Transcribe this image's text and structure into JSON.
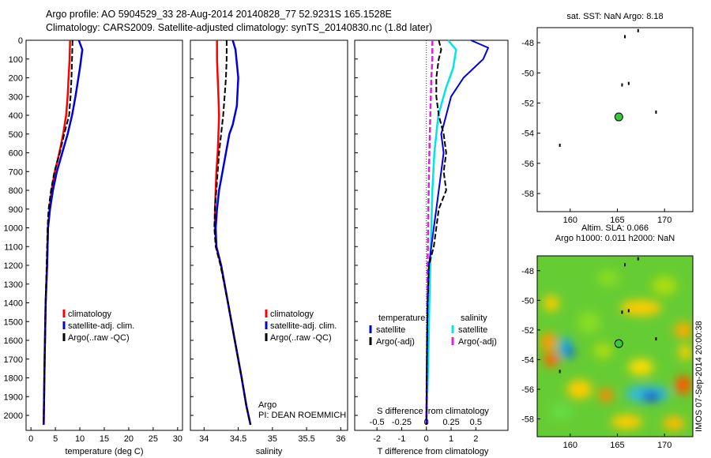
{
  "header": {
    "line1": "Argo profile: AO 5904529_33 28-Aug-2014 20140828_77 52.9231S 165.1528E",
    "line2": "Climatology: CARS2009. Satellite-adjusted climatology: synTS_20140830.nc (1.8d later)"
  },
  "side_label": "IMOS 07-Sep-2014 20:00:38",
  "colors": {
    "climatology": "#ff0000",
    "satellite": "#0000dd",
    "argo": "#000000",
    "s_satellite": "#00e5e5",
    "s_argo": "#e020e0",
    "marker": "#33cc33"
  },
  "chart_data": [
    {
      "type": "line",
      "panel": "temperature",
      "xlabel": "temperature (deg C)",
      "xlim": [
        -1,
        31
      ],
      "xticks": [
        "0",
        "5",
        "10",
        "15",
        "20",
        "25",
        "30"
      ],
      "ylim": [
        0,
        2080
      ],
      "y_reversed": true,
      "yticks": [
        "0",
        "100",
        "200",
        "300",
        "400",
        "500",
        "600",
        "700",
        "800",
        "900",
        "1000",
        "1100",
        "1200",
        "1300",
        "1400",
        "1500",
        "1600",
        "1700",
        "1800",
        "1900",
        "2000"
      ],
      "legend": [
        "climatology",
        "satellite-adj. clim.",
        "Argo(..raw -QC)"
      ],
      "series": [
        {
          "name": "climatology",
          "style": "solid",
          "x": [
            8.0,
            7.9,
            7.7,
            7.5,
            7.2,
            6.6,
            5.8,
            4.9,
            4.2,
            3.8,
            3.5,
            3.3,
            3.0,
            2.8,
            2.6
          ],
          "y": [
            0,
            100,
            200,
            300,
            400,
            500,
            600,
            700,
            800,
            900,
            1000,
            1200,
            1400,
            1700,
            2050
          ]
        },
        {
          "name": "satellite-adj. clim.",
          "style": "solid",
          "x": [
            9.8,
            10.5,
            10.0,
            9.1,
            8.4,
            7.5,
            6.4,
            5.3,
            4.5,
            3.9,
            3.5,
            3.3,
            3.0,
            2.8,
            2.6
          ],
          "y": [
            0,
            50,
            150,
            300,
            400,
            500,
            600,
            700,
            800,
            900,
            1000,
            1200,
            1400,
            1700,
            2050
          ]
        },
        {
          "name": "Argo(..raw -QC)",
          "style": "dashed",
          "x": [
            8.5,
            8.4,
            8.3,
            8.1,
            7.8,
            6.8,
            5.9,
            4.8,
            4.1,
            3.6,
            3.4,
            3.2,
            3.0,
            2.8,
            2.6
          ],
          "y": [
            0,
            100,
            200,
            300,
            400,
            500,
            600,
            700,
            800,
            900,
            1000,
            1200,
            1400,
            1700,
            2050
          ]
        }
      ]
    },
    {
      "type": "line",
      "panel": "salinity",
      "xlabel": "salinity",
      "xlim": [
        33.8,
        36.1
      ],
      "xticks": [
        "34",
        "34.5",
        "35",
        "35.5",
        "36"
      ],
      "ylim": [
        0,
        2080
      ],
      "y_reversed": true,
      "legend": [
        "climatology",
        "satellite-adj. clim.",
        "Argo(..raw -QC)"
      ],
      "annotation": [
        "Argo",
        "PI: DEAN ROEMMICH"
      ],
      "series": [
        {
          "name": "climatology",
          "style": "solid",
          "x": [
            34.19,
            34.19,
            34.2,
            34.21,
            34.22,
            34.21,
            34.2,
            34.18,
            34.17,
            34.16,
            34.16,
            34.18,
            34.25,
            34.35,
            34.45,
            34.55,
            34.62,
            34.68
          ],
          "y": [
            0,
            100,
            200,
            300,
            400,
            500,
            600,
            700,
            800,
            900,
            1000,
            1100,
            1200,
            1400,
            1600,
            1800,
            1950,
            2050
          ]
        },
        {
          "name": "satellite-adj. clim.",
          "style": "solid",
          "x": [
            34.42,
            34.46,
            34.5,
            34.48,
            34.42,
            34.37,
            34.32,
            34.27,
            34.22,
            34.19,
            34.17,
            34.18,
            34.25,
            34.35,
            34.45,
            34.55,
            34.62,
            34.68
          ],
          "y": [
            0,
            50,
            200,
            350,
            450,
            500,
            600,
            700,
            800,
            900,
            1000,
            1100,
            1200,
            1400,
            1600,
            1800,
            1950,
            2050
          ]
        },
        {
          "name": "Argo(..raw -QC)",
          "style": "dashed",
          "x": [
            34.33,
            34.33,
            34.32,
            34.3,
            34.28,
            34.25,
            34.22,
            34.2,
            34.18,
            34.16,
            34.15,
            34.17,
            34.24,
            34.35,
            34.45,
            34.55,
            34.62,
            34.68
          ],
          "y": [
            0,
            100,
            200,
            300,
            400,
            500,
            600,
            700,
            800,
            900,
            1000,
            1100,
            1200,
            1400,
            1600,
            1800,
            1950,
            2050
          ]
        }
      ]
    },
    {
      "type": "line",
      "panel": "difference",
      "xlabel": "T difference from climatology",
      "xlabel_top": "S difference from climatology",
      "xlim": [
        -2.9,
        3.3
      ],
      "xticks": [
        "-2",
        "-1",
        "0",
        "1",
        "2"
      ],
      "xlim_s": [
        -0.725,
        0.825
      ],
      "xticks_s": [
        "-0.5",
        "-0.25",
        "0",
        "0.25",
        "0.5"
      ],
      "ylim": [
        0,
        2080
      ],
      "y_reversed": true,
      "legend_left": [
        "temperature",
        "satellite",
        "Argo(-adj)"
      ],
      "legend_right": [
        "salinity",
        "satellite",
        "Argo(-adj)"
      ],
      "series": [
        {
          "name": "T satellite",
          "style": "solid",
          "x": [
            1.8,
            2.5,
            2.3,
            1.5,
            1.0,
            0.8,
            0.6,
            0.7,
            0.6,
            0.5,
            0.4,
            0.3,
            0.2,
            0.1,
            0.05,
            0.02,
            0.0
          ],
          "y": [
            0,
            40,
            100,
            200,
            300,
            400,
            500,
            600,
            700,
            800,
            900,
            1000,
            1100,
            1200,
            1400,
            1700,
            2050
          ]
        },
        {
          "name": "T Argo(-adj)",
          "style": "dashed",
          "x": [
            0.5,
            0.6,
            0.5,
            0.4,
            0.4,
            0.5,
            0.7,
            0.8,
            0.7,
            0.8,
            0.5,
            0.4,
            0.3,
            0.1,
            0.05,
            0.02,
            0.0
          ],
          "y": [
            0,
            50,
            100,
            200,
            300,
            400,
            500,
            600,
            700,
            800,
            900,
            1000,
            1100,
            1200,
            1400,
            1700,
            2050
          ]
        },
        {
          "name": "S satellite",
          "style": "solid",
          "s_x": [
            0.22,
            0.3,
            0.27,
            0.2,
            0.12,
            0.08,
            0.06,
            0.05,
            0.04,
            0.03,
            0.02,
            0.0
          ],
          "y": [
            0,
            50,
            150,
            250,
            400,
            600,
            800,
            1000,
            1200,
            1400,
            1700,
            2050
          ]
        },
        {
          "name": "S Argo(-adj)",
          "style": "dashed",
          "s_x": [
            0.06,
            0.06,
            0.05,
            0.04,
            0.03,
            0.02,
            0.01,
            0.0
          ],
          "y": [
            0,
            100,
            200,
            400,
            600,
            900,
            1300,
            2050
          ]
        }
      ]
    },
    {
      "type": "scatter",
      "panel": "map_sst",
      "title": "sat. SST: NaN Argo: 8.18",
      "xlim": [
        156.5,
        173
      ],
      "ylim": [
        -59.2,
        -47
      ],
      "xticks": [
        "160",
        "165",
        "170"
      ],
      "yticks": [
        "-48",
        "-50",
        "-52",
        "-54",
        "-56",
        "-58"
      ],
      "argo_position": {
        "lon": 165.15,
        "lat": -52.92
      }
    },
    {
      "type": "heatmap",
      "panel": "map_sla",
      "title": "Altim. SLA: 0.066",
      "subtitle": "Argo h1000: 0.011 h2000: NaN",
      "xlim": [
        156.5,
        173
      ],
      "ylim": [
        -59.2,
        -47
      ],
      "xticks": [
        "160",
        "165",
        "170"
      ],
      "yticks": [
        "-48",
        "-50",
        "-52",
        "-54",
        "-56",
        "-58"
      ],
      "argo_position": {
        "lon": 165.15,
        "lat": -52.92
      }
    }
  ]
}
